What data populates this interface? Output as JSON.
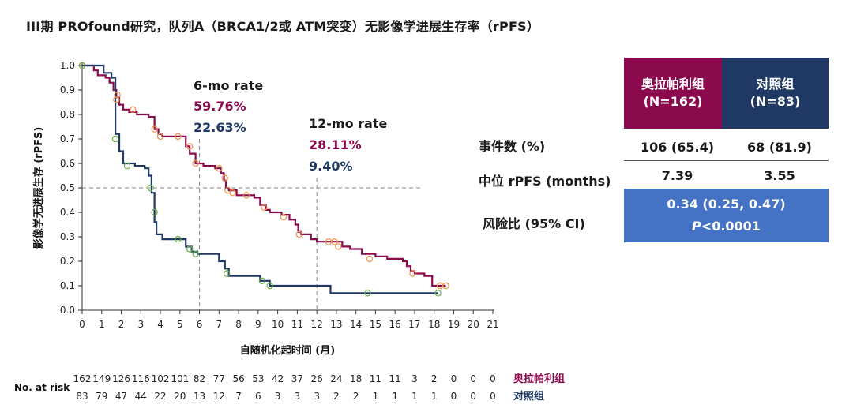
{
  "title": "III期 PROfound研究，队列A（BRCA1/2或 ATM突变）无影像学进展生存率（rPFS）",
  "colors": {
    "olaparib": "#8b0a4e",
    "control": "#1f3864",
    "censor": "#f0914a",
    "censor_control": "#6ab04c",
    "hr_box": "#4472c4"
  },
  "chart_data": {
    "type": "line",
    "subtype": "kaplan-meier",
    "xlabel": "自随机化起时间 (月)",
    "ylabel": "影像学无进展生存 (rPFS)",
    "xlim": [
      0,
      21
    ],
    "ylim": [
      0,
      1.0
    ],
    "x_ticks": [
      "0",
      "1",
      "2",
      "3",
      "4",
      "5",
      "6",
      "7",
      "8",
      "9",
      "10",
      "11",
      "12",
      "13",
      "14",
      "15",
      "16",
      "17",
      "18",
      "19",
      "20",
      "21"
    ],
    "y_ticks": [
      "0.0",
      "0.1",
      "0.2",
      "0.3",
      "0.4",
      "0.5",
      "0.6",
      "0.7",
      "0.8",
      "0.9",
      "1.0"
    ],
    "reference_lines": {
      "y": 0.5,
      "x": [
        6,
        12
      ]
    },
    "series": [
      {
        "name": "奥拉帕利组",
        "points": [
          [
            0,
            1.0
          ],
          [
            0.6,
            0.98
          ],
          [
            0.8,
            0.96
          ],
          [
            1.2,
            0.95
          ],
          [
            1.4,
            0.93
          ],
          [
            1.6,
            0.9
          ],
          [
            1.75,
            0.87
          ],
          [
            1.9,
            0.84
          ],
          [
            2.1,
            0.82
          ],
          [
            2.4,
            0.81
          ],
          [
            2.8,
            0.8
          ],
          [
            3.4,
            0.79
          ],
          [
            3.7,
            0.74
          ],
          [
            3.9,
            0.72
          ],
          [
            4.1,
            0.71
          ],
          [
            5.3,
            0.67
          ],
          [
            5.5,
            0.64
          ],
          [
            5.8,
            0.6
          ],
          [
            6.2,
            0.59
          ],
          [
            6.8,
            0.58
          ],
          [
            7.1,
            0.56
          ],
          [
            7.25,
            0.53
          ],
          [
            7.35,
            0.5
          ],
          [
            7.5,
            0.49
          ],
          [
            7.9,
            0.47
          ],
          [
            8.8,
            0.46
          ],
          [
            9.1,
            0.43
          ],
          [
            9.4,
            0.41
          ],
          [
            9.6,
            0.4
          ],
          [
            10.2,
            0.39
          ],
          [
            10.6,
            0.37
          ],
          [
            10.9,
            0.35
          ],
          [
            11.05,
            0.32
          ],
          [
            11.2,
            0.31
          ],
          [
            11.7,
            0.29
          ],
          [
            12.0,
            0.28
          ],
          [
            13.3,
            0.26
          ],
          [
            13.7,
            0.25
          ],
          [
            14.3,
            0.23
          ],
          [
            15.0,
            0.22
          ],
          [
            15.6,
            0.21
          ],
          [
            16.4,
            0.2
          ],
          [
            16.6,
            0.18
          ],
          [
            16.8,
            0.16
          ],
          [
            17.0,
            0.15
          ],
          [
            17.5,
            0.14
          ],
          [
            17.9,
            0.1
          ],
          [
            18.6,
            0.1
          ]
        ],
        "censors": [
          [
            0,
            1.0
          ],
          [
            1.8,
            0.88
          ],
          [
            1.75,
            0.86
          ],
          [
            2.6,
            0.82
          ],
          [
            3.7,
            0.74
          ],
          [
            4.0,
            0.71
          ],
          [
            4.9,
            0.71
          ],
          [
            5.5,
            0.67
          ],
          [
            5.8,
            0.6
          ],
          [
            7.0,
            0.58
          ],
          [
            7.3,
            0.54
          ],
          [
            7.45,
            0.49
          ],
          [
            7.7,
            0.48
          ],
          [
            8.4,
            0.47
          ],
          [
            9.3,
            0.42
          ],
          [
            10.3,
            0.38
          ],
          [
            11.1,
            0.31
          ],
          [
            12.6,
            0.28
          ],
          [
            12.9,
            0.28
          ],
          [
            13.1,
            0.26
          ],
          [
            14.7,
            0.21
          ],
          [
            16.9,
            0.15
          ],
          [
            18.3,
            0.1
          ],
          [
            18.6,
            0.1
          ]
        ]
      },
      {
        "name": "对照组",
        "points": [
          [
            0,
            1.0
          ],
          [
            1.1,
            0.97
          ],
          [
            1.5,
            0.95
          ],
          [
            1.7,
            0.72
          ],
          [
            1.9,
            0.65
          ],
          [
            2.1,
            0.6
          ],
          [
            2.7,
            0.59
          ],
          [
            3.2,
            0.58
          ],
          [
            3.4,
            0.55
          ],
          [
            3.55,
            0.48
          ],
          [
            3.7,
            0.36
          ],
          [
            3.8,
            0.31
          ],
          [
            4.1,
            0.29
          ],
          [
            5.3,
            0.26
          ],
          [
            5.6,
            0.24
          ],
          [
            5.9,
            0.23
          ],
          [
            7.0,
            0.2
          ],
          [
            7.3,
            0.17
          ],
          [
            7.5,
            0.14
          ],
          [
            9.1,
            0.12
          ],
          [
            9.6,
            0.1
          ],
          [
            12.7,
            0.07
          ],
          [
            18.2,
            0.07
          ]
        ],
        "censors": [
          [
            0,
            1.0
          ],
          [
            1.7,
            0.7
          ],
          [
            2.3,
            0.59
          ],
          [
            3.5,
            0.5
          ],
          [
            3.7,
            0.4
          ],
          [
            4.9,
            0.29
          ],
          [
            5.5,
            0.25
          ],
          [
            5.8,
            0.23
          ],
          [
            7.4,
            0.15
          ],
          [
            9.2,
            0.12
          ],
          [
            9.6,
            0.1
          ],
          [
            14.6,
            0.07
          ],
          [
            18.2,
            0.07
          ]
        ]
      }
    ],
    "annotations": {
      "six_mo": {
        "label": "6-mo rate",
        "olaparib": "59.76%",
        "control": "22.63%"
      },
      "twelve_mo": {
        "label": "12-mo rate",
        "olaparib": "28.11%",
        "control": "9.40%"
      }
    }
  },
  "risk_table": {
    "label": "No. at risk",
    "olaparib": {
      "name": "奥拉帕利组",
      "counts": [
        "162",
        "149",
        "126",
        "116",
        "102",
        "101",
        "82",
        "77",
        "56",
        "53",
        "42",
        "37",
        "26",
        "24",
        "18",
        "11",
        "11",
        "3",
        "2",
        "0",
        "0",
        "0"
      ]
    },
    "control": {
      "name": "对照组",
      "counts": [
        "83",
        "79",
        "47",
        "44",
        "22",
        "20",
        "13",
        "12",
        "7",
        "6",
        "3",
        "3",
        "3",
        "2",
        "2",
        "1",
        "1",
        "1",
        "1",
        "0",
        "0",
        "0"
      ]
    }
  },
  "summary": {
    "col_olaparib": {
      "line1": "奥拉帕利组",
      "line2": "(N=162)"
    },
    "col_control": {
      "line1": "对照组",
      "line2": "(N=83)"
    },
    "rows": [
      {
        "label": "事件数 (%)",
        "olaparib": "106 (65.4)",
        "control": "68 (81.9)"
      },
      {
        "label": "中位 rPFS (months)",
        "olaparib": "7.39",
        "control": "3.55"
      }
    ],
    "hr": {
      "label": "风险比 (95% CI)",
      "value": "0.34 (0.25, 0.47)",
      "p_letter": "P",
      "p_rest": "<0.0001"
    }
  }
}
